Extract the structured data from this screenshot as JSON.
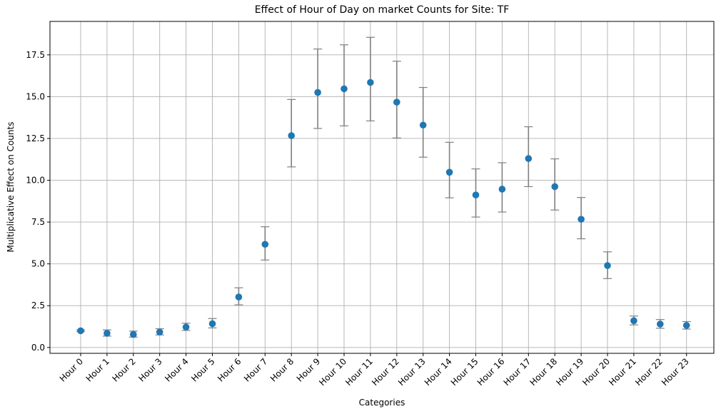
{
  "chart_data": {
    "type": "scatter",
    "title": "Effect of Hour of Day on market Counts for Site: TF",
    "xlabel": "Categories",
    "ylabel": "Multiplicative Effect on Counts",
    "categories": [
      "Hour 0",
      "Hour 1",
      "Hour 2",
      "Hour 3",
      "Hour 4",
      "Hour 5",
      "Hour 6",
      "Hour 7",
      "Hour 8",
      "Hour 9",
      "Hour 10",
      "Hour 11",
      "Hour 12",
      "Hour 13",
      "Hour 14",
      "Hour 15",
      "Hour 16",
      "Hour 17",
      "Hour 18",
      "Hour 19",
      "Hour 20",
      "Hour 21",
      "Hour 22",
      "Hour 23"
    ],
    "values": [
      1.0,
      0.85,
      0.78,
      0.92,
      1.22,
      1.42,
      3.02,
      6.17,
      12.67,
      15.25,
      15.47,
      15.85,
      14.67,
      13.3,
      10.48,
      9.12,
      9.47,
      11.3,
      9.62,
      7.67,
      4.9,
      1.6,
      1.4,
      1.32
    ],
    "lower": [
      0.95,
      0.68,
      0.62,
      0.75,
      1.02,
      1.17,
      2.55,
      5.23,
      10.8,
      13.1,
      13.25,
      13.55,
      12.53,
      11.38,
      8.95,
      7.8,
      8.1,
      9.62,
      8.22,
      6.5,
      4.12,
      1.35,
      1.15,
      1.1
    ],
    "upper": [
      1.05,
      1.05,
      0.98,
      1.12,
      1.45,
      1.73,
      3.57,
      7.22,
      14.83,
      17.85,
      18.1,
      18.55,
      17.12,
      15.55,
      12.27,
      10.68,
      11.05,
      13.2,
      11.28,
      8.97,
      5.72,
      1.88,
      1.67,
      1.55
    ],
    "yticks": [
      0.0,
      2.5,
      5.0,
      7.5,
      10.0,
      12.5,
      15.0,
      17.5
    ],
    "ytick_labels": [
      "0.0",
      "2.5",
      "5.0",
      "7.5",
      "10.0",
      "12.5",
      "15.0",
      "17.5"
    ],
    "ylim": [
      -0.35,
      19.5
    ],
    "grid": true,
    "colors": {
      "marker": "#1f77b4",
      "errorbar": "#808080",
      "grid": "#b0b0b0"
    }
  }
}
